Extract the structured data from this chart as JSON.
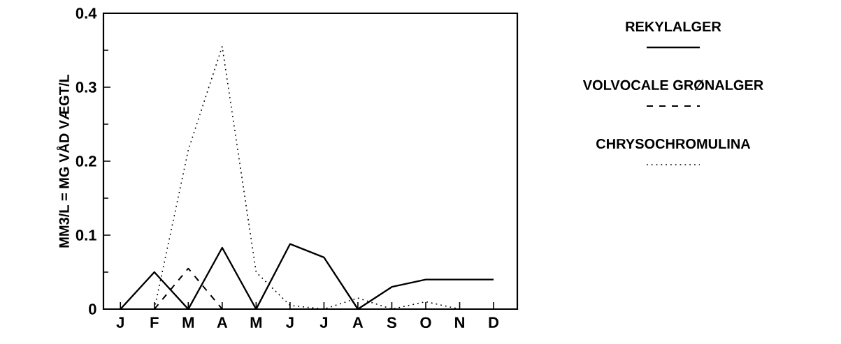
{
  "chart_data": {
    "type": "line",
    "ylabel": "MM3/L = MG VÅD VÆGT/L",
    "categories": [
      "J",
      "F",
      "M",
      "A",
      "M",
      "J",
      "J",
      "A",
      "S",
      "O",
      "N",
      "D"
    ],
    "series": [
      {
        "name": "REKYLALGER",
        "color": "#000000",
        "line_style": "solid",
        "values": [
          0,
          0.05,
          0,
          0.083,
          0,
          0.088,
          0.07,
          0,
          0.03,
          0.04,
          0.04,
          0.04
        ]
      },
      {
        "name": "VOLVOCALE GRØNALGER",
        "color": "#000000",
        "line_style": "dashed",
        "values": [
          null,
          0,
          0.055,
          0,
          null,
          null,
          null,
          null,
          null,
          null,
          null,
          null
        ]
      },
      {
        "name": "CHRYSOCHROMULINA",
        "color": "#000000",
        "line_style": "dotted",
        "values": [
          null,
          0,
          0.215,
          0.355,
          0.05,
          0.005,
          0,
          0.015,
          0,
          0.01,
          0,
          null
        ]
      }
    ],
    "ylim": [
      0,
      0.4
    ],
    "yticks": [
      0,
      0.1,
      0.2,
      0.3,
      0.4
    ],
    "grid": false,
    "legend": "right",
    "marker": "none"
  }
}
